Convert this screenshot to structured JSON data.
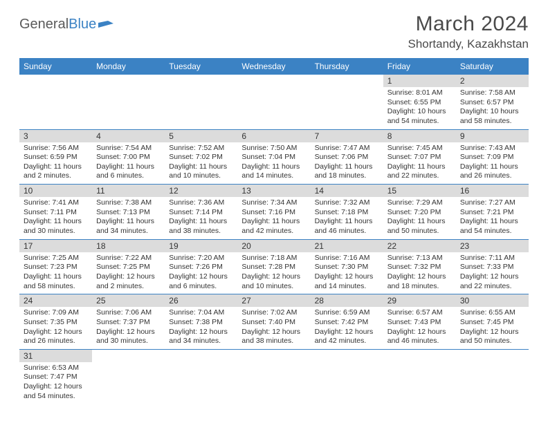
{
  "logo": {
    "text1": "General",
    "text2": "Blue"
  },
  "title": "March 2024",
  "location": "Shortandy, Kazakhstan",
  "colors": {
    "header_bg": "#3b82c4",
    "daynum_bg": "#dcdcdc",
    "text": "#333333"
  },
  "weekdays": [
    "Sunday",
    "Monday",
    "Tuesday",
    "Wednesday",
    "Thursday",
    "Friday",
    "Saturday"
  ],
  "weeks": [
    [
      null,
      null,
      null,
      null,
      null,
      {
        "n": "1",
        "sr": "Sunrise: 8:01 AM",
        "ss": "Sunset: 6:55 PM",
        "dl": "Daylight: 10 hours and 54 minutes."
      },
      {
        "n": "2",
        "sr": "Sunrise: 7:58 AM",
        "ss": "Sunset: 6:57 PM",
        "dl": "Daylight: 10 hours and 58 minutes."
      }
    ],
    [
      {
        "n": "3",
        "sr": "Sunrise: 7:56 AM",
        "ss": "Sunset: 6:59 PM",
        "dl": "Daylight: 11 hours and 2 minutes."
      },
      {
        "n": "4",
        "sr": "Sunrise: 7:54 AM",
        "ss": "Sunset: 7:00 PM",
        "dl": "Daylight: 11 hours and 6 minutes."
      },
      {
        "n": "5",
        "sr": "Sunrise: 7:52 AM",
        "ss": "Sunset: 7:02 PM",
        "dl": "Daylight: 11 hours and 10 minutes."
      },
      {
        "n": "6",
        "sr": "Sunrise: 7:50 AM",
        "ss": "Sunset: 7:04 PM",
        "dl": "Daylight: 11 hours and 14 minutes."
      },
      {
        "n": "7",
        "sr": "Sunrise: 7:47 AM",
        "ss": "Sunset: 7:06 PM",
        "dl": "Daylight: 11 hours and 18 minutes."
      },
      {
        "n": "8",
        "sr": "Sunrise: 7:45 AM",
        "ss": "Sunset: 7:07 PM",
        "dl": "Daylight: 11 hours and 22 minutes."
      },
      {
        "n": "9",
        "sr": "Sunrise: 7:43 AM",
        "ss": "Sunset: 7:09 PM",
        "dl": "Daylight: 11 hours and 26 minutes."
      }
    ],
    [
      {
        "n": "10",
        "sr": "Sunrise: 7:41 AM",
        "ss": "Sunset: 7:11 PM",
        "dl": "Daylight: 11 hours and 30 minutes."
      },
      {
        "n": "11",
        "sr": "Sunrise: 7:38 AM",
        "ss": "Sunset: 7:13 PM",
        "dl": "Daylight: 11 hours and 34 minutes."
      },
      {
        "n": "12",
        "sr": "Sunrise: 7:36 AM",
        "ss": "Sunset: 7:14 PM",
        "dl": "Daylight: 11 hours and 38 minutes."
      },
      {
        "n": "13",
        "sr": "Sunrise: 7:34 AM",
        "ss": "Sunset: 7:16 PM",
        "dl": "Daylight: 11 hours and 42 minutes."
      },
      {
        "n": "14",
        "sr": "Sunrise: 7:32 AM",
        "ss": "Sunset: 7:18 PM",
        "dl": "Daylight: 11 hours and 46 minutes."
      },
      {
        "n": "15",
        "sr": "Sunrise: 7:29 AM",
        "ss": "Sunset: 7:20 PM",
        "dl": "Daylight: 11 hours and 50 minutes."
      },
      {
        "n": "16",
        "sr": "Sunrise: 7:27 AM",
        "ss": "Sunset: 7:21 PM",
        "dl": "Daylight: 11 hours and 54 minutes."
      }
    ],
    [
      {
        "n": "17",
        "sr": "Sunrise: 7:25 AM",
        "ss": "Sunset: 7:23 PM",
        "dl": "Daylight: 11 hours and 58 minutes."
      },
      {
        "n": "18",
        "sr": "Sunrise: 7:22 AM",
        "ss": "Sunset: 7:25 PM",
        "dl": "Daylight: 12 hours and 2 minutes."
      },
      {
        "n": "19",
        "sr": "Sunrise: 7:20 AM",
        "ss": "Sunset: 7:26 PM",
        "dl": "Daylight: 12 hours and 6 minutes."
      },
      {
        "n": "20",
        "sr": "Sunrise: 7:18 AM",
        "ss": "Sunset: 7:28 PM",
        "dl": "Daylight: 12 hours and 10 minutes."
      },
      {
        "n": "21",
        "sr": "Sunrise: 7:16 AM",
        "ss": "Sunset: 7:30 PM",
        "dl": "Daylight: 12 hours and 14 minutes."
      },
      {
        "n": "22",
        "sr": "Sunrise: 7:13 AM",
        "ss": "Sunset: 7:32 PM",
        "dl": "Daylight: 12 hours and 18 minutes."
      },
      {
        "n": "23",
        "sr": "Sunrise: 7:11 AM",
        "ss": "Sunset: 7:33 PM",
        "dl": "Daylight: 12 hours and 22 minutes."
      }
    ],
    [
      {
        "n": "24",
        "sr": "Sunrise: 7:09 AM",
        "ss": "Sunset: 7:35 PM",
        "dl": "Daylight: 12 hours and 26 minutes."
      },
      {
        "n": "25",
        "sr": "Sunrise: 7:06 AM",
        "ss": "Sunset: 7:37 PM",
        "dl": "Daylight: 12 hours and 30 minutes."
      },
      {
        "n": "26",
        "sr": "Sunrise: 7:04 AM",
        "ss": "Sunset: 7:38 PM",
        "dl": "Daylight: 12 hours and 34 minutes."
      },
      {
        "n": "27",
        "sr": "Sunrise: 7:02 AM",
        "ss": "Sunset: 7:40 PM",
        "dl": "Daylight: 12 hours and 38 minutes."
      },
      {
        "n": "28",
        "sr": "Sunrise: 6:59 AM",
        "ss": "Sunset: 7:42 PM",
        "dl": "Daylight: 12 hours and 42 minutes."
      },
      {
        "n": "29",
        "sr": "Sunrise: 6:57 AM",
        "ss": "Sunset: 7:43 PM",
        "dl": "Daylight: 12 hours and 46 minutes."
      },
      {
        "n": "30",
        "sr": "Sunrise: 6:55 AM",
        "ss": "Sunset: 7:45 PM",
        "dl": "Daylight: 12 hours and 50 minutes."
      }
    ],
    [
      {
        "n": "31",
        "sr": "Sunrise: 6:53 AM",
        "ss": "Sunset: 7:47 PM",
        "dl": "Daylight: 12 hours and 54 minutes."
      },
      null,
      null,
      null,
      null,
      null,
      null
    ]
  ]
}
